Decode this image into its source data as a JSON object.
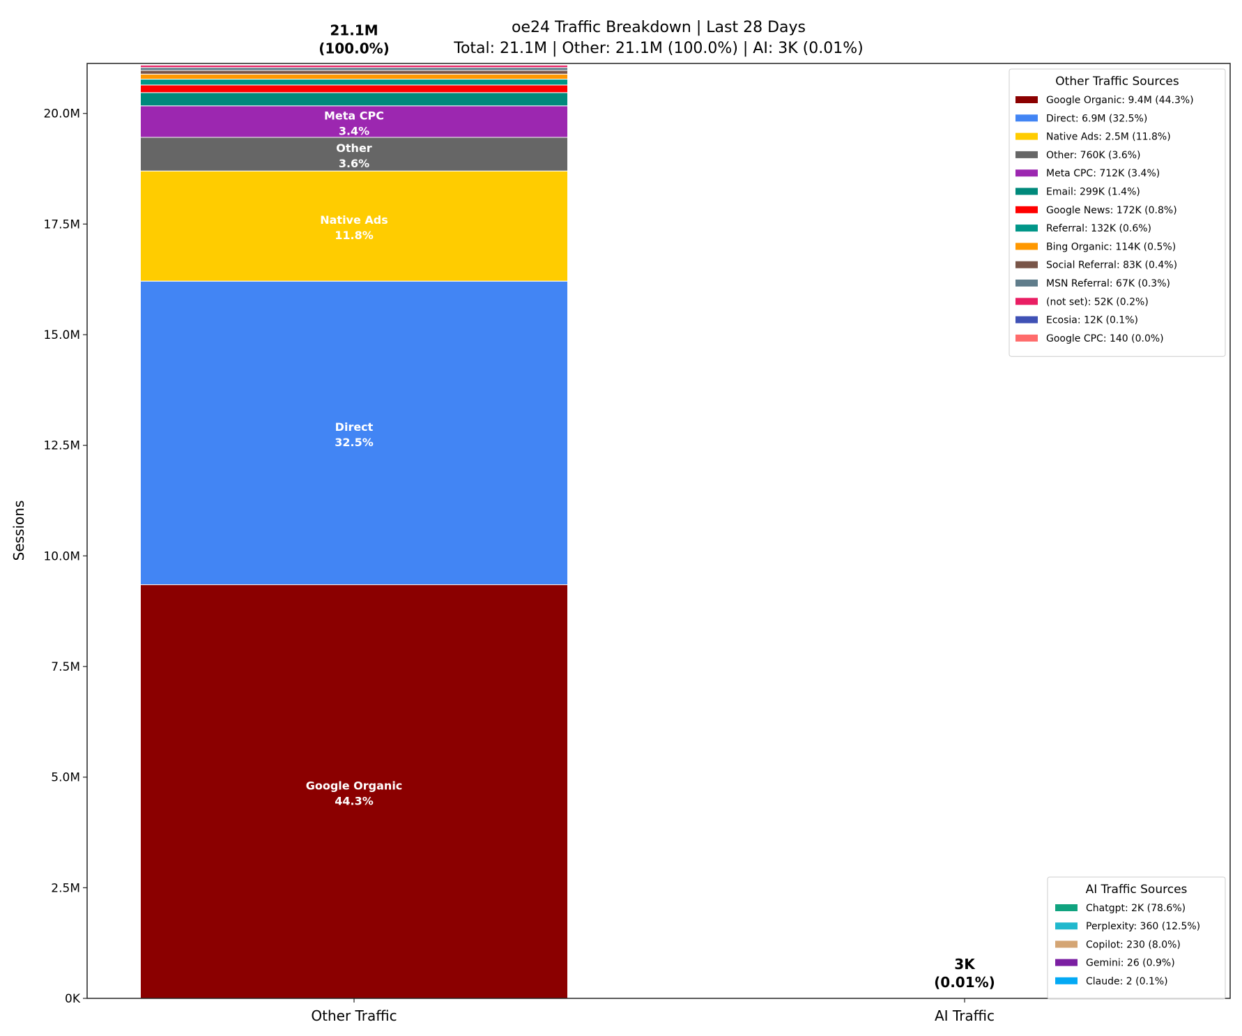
{
  "chart_data": {
    "type": "bar",
    "stacked": true,
    "title": "oe24 Traffic Breakdown | Last 28 Days",
    "subtitle": "Total: 21.1M | Other: 21.1M (100.0%) | AI: 3K (0.01%)",
    "xlabel": "",
    "ylabel": "Sessions",
    "categories": [
      "Other Traffic",
      "AI Traffic"
    ],
    "ylim": [
      0,
      21130000
    ],
    "yticks": [
      0,
      2500000,
      5000000,
      7500000,
      10000000,
      12500000,
      15000000,
      17500000,
      20000000
    ],
    "ytick_labels": [
      "0K",
      "2.5M",
      "5.0M",
      "7.5M",
      "10.0M",
      "12.5M",
      "15.0M",
      "17.5M",
      "20.0M"
    ],
    "grid": false,
    "bar_totals": [
      {
        "value": "21.1M",
        "percent": "(100.0%)"
      },
      {
        "value": "3K",
        "percent": "(0.01%)"
      }
    ],
    "stacks": [
      {
        "category": "Other Traffic",
        "legend_title": "Other Traffic Sources",
        "legend_placement": "upper right",
        "segments": [
          {
            "name": "Google Organic",
            "value": 9350000,
            "pct": "44.3%",
            "legend": "Google Organic: 9.4M (44.3%)",
            "color": "#8B0000",
            "show_label": true
          },
          {
            "name": "Direct",
            "value": 6860000,
            "pct": "32.5%",
            "legend": "Direct: 6.9M (32.5%)",
            "color": "#4285F4",
            "show_label": true
          },
          {
            "name": "Native Ads",
            "value": 2490000,
            "pct": "11.8%",
            "legend": "Native Ads: 2.5M (11.8%)",
            "color": "#FFCC00",
            "show_label": true
          },
          {
            "name": "Other",
            "value": 760000,
            "pct": "3.6%",
            "legend": "Other: 760K (3.6%)",
            "color": "#666666",
            "show_label": true
          },
          {
            "name": "Meta CPC",
            "value": 712000,
            "pct": "3.4%",
            "legend": "Meta CPC: 712K (3.4%)",
            "color": "#9C27B0",
            "show_label": true
          },
          {
            "name": "Email",
            "value": 299000,
            "pct": "1.4%",
            "legend": "Email: 299K (1.4%)",
            "color": "#00897B",
            "show_label": false
          },
          {
            "name": "Google News",
            "value": 172000,
            "pct": "0.8%",
            "legend": "Google News: 172K (0.8%)",
            "color": "#FF0000",
            "show_label": false
          },
          {
            "name": "Referral",
            "value": 132000,
            "pct": "0.6%",
            "legend": "Referral: 132K (0.6%)",
            "color": "#009688",
            "show_label": false
          },
          {
            "name": "Bing Organic",
            "value": 114000,
            "pct": "0.5%",
            "legend": "Bing Organic: 114K (0.5%)",
            "color": "#FF9800",
            "show_label": false
          },
          {
            "name": "Social Referral",
            "value": 83000,
            "pct": "0.4%",
            "legend": "Social Referral: 83K (0.4%)",
            "color": "#795548",
            "show_label": false
          },
          {
            "name": "MSN Referral",
            "value": 67000,
            "pct": "0.3%",
            "legend": "MSN Referral: 67K (0.3%)",
            "color": "#607D8B",
            "show_label": false
          },
          {
            "name": "(not set)",
            "value": 52000,
            "pct": "0.2%",
            "legend": "(not set): 52K (0.2%)",
            "color": "#E91E63",
            "show_label": false
          },
          {
            "name": "Ecosia",
            "value": 12000,
            "pct": "0.1%",
            "legend": "Ecosia: 12K (0.1%)",
            "color": "#3F51B5",
            "show_label": false
          },
          {
            "name": "Google CPC",
            "value": 140,
            "pct": "0.0%",
            "legend": "Google CPC: 140 (0.0%)",
            "color": "#FF6B6B",
            "show_label": false
          }
        ]
      },
      {
        "category": "AI Traffic",
        "legend_title": "AI Traffic Sources",
        "legend_placement": "lower right",
        "segments": [
          {
            "name": "Chatgpt",
            "value": 2200,
            "pct": "78.6%",
            "legend": "Chatgpt: 2K (78.6%)",
            "color": "#10A37F",
            "show_label": false
          },
          {
            "name": "Perplexity",
            "value": 360,
            "pct": "12.5%",
            "legend": "Perplexity: 360 (12.5%)",
            "color": "#20B8CD",
            "show_label": false
          },
          {
            "name": "Copilot",
            "value": 230,
            "pct": "8.0%",
            "legend": "Copilot: 230 (8.0%)",
            "color": "#D4A574",
            "show_label": false
          },
          {
            "name": "Gemini",
            "value": 26,
            "pct": "0.9%",
            "legend": "Gemini: 26 (0.9%)",
            "color": "#7B1FA2",
            "show_label": false
          },
          {
            "name": "Claude",
            "value": 2,
            "pct": "0.1%",
            "legend": "Claude: 2 (0.1%)",
            "color": "#03A9F4",
            "show_label": false
          }
        ]
      }
    ]
  }
}
